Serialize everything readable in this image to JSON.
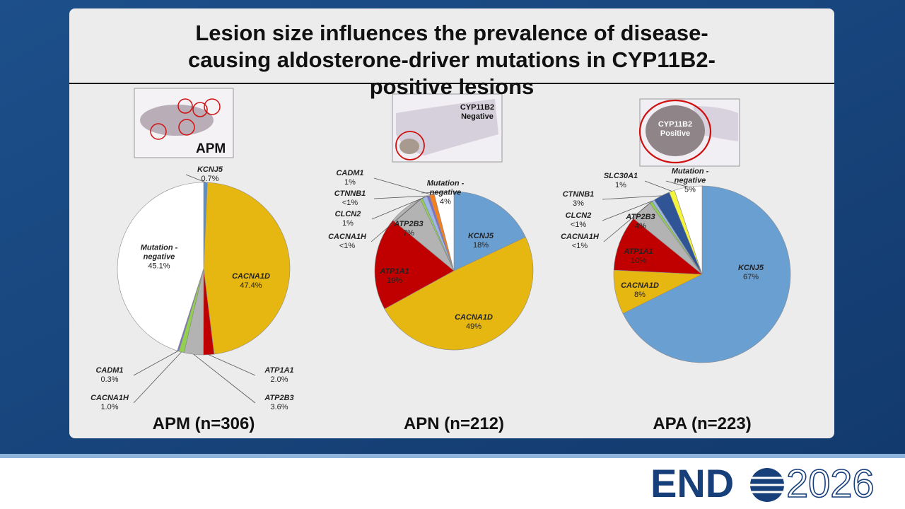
{
  "title": "Lesion size influences the prevalence of disease-causing aldosterone-driver mutations in CYP11B2-positive lesions",
  "images": [
    {
      "label": "APM"
    },
    {
      "label": "CYP11B2 Negative"
    },
    {
      "label": "CYP11B2 Positive"
    }
  ],
  "logo": {
    "left": "END",
    "right": "2026"
  },
  "chart_data": [
    {
      "type": "pie",
      "title": "APM (n=306)",
      "categories": [
        "KCNJ5",
        "CACNA1D",
        "ATP1A1",
        "ATP2B3",
        "CACNA1H",
        "CADM1",
        "Mutation -negative"
      ],
      "values": [
        0.7,
        47.4,
        2,
        3.6,
        1,
        0.3,
        45.1
      ],
      "value_labels": [
        "0.7%",
        "47.4%",
        "2.0%",
        "3.6%",
        "1.0%",
        "0.3%",
        "45.1%"
      ],
      "colors": [
        "#5b8fc7",
        "#e6b711",
        "#c00000",
        "#b3b3b3",
        "#92d050",
        "#7f6fd0",
        "#ffffff"
      ]
    },
    {
      "type": "pie",
      "title": "APN (n=212)",
      "categories": [
        "KCNJ5",
        "CACNA1D",
        "ATP1A1",
        "ATP2B3",
        "CACNA1H",
        "CLCN2",
        "CTNNB1",
        "CADM1",
        "Mutation -negative"
      ],
      "values": [
        18,
        49,
        19,
        7,
        0.5,
        1,
        0.5,
        1,
        4
      ],
      "value_labels": [
        "18%",
        "49%",
        "19%",
        "7%",
        "<1%",
        "1%",
        "<1%",
        "1%",
        "4%"
      ],
      "colors": [
        "#6a9fd2",
        "#e6b711",
        "#c00000",
        "#b3b3b3",
        "#92d050",
        "#9db8e8",
        "#7f6fd0",
        "#f08020",
        "#ffffff"
      ]
    },
    {
      "type": "pie",
      "title": "APA (n=223)",
      "categories": [
        "KCNJ5",
        "CACNA1D",
        "ATP1A1",
        "ATP2B3",
        "CACNA1H",
        "CLCN2",
        "CTNNB1",
        "SLC30A1",
        "Mutation -negative"
      ],
      "values": [
        67,
        8,
        10,
        4,
        0.5,
        0.5,
        3,
        1,
        5
      ],
      "value_labels": [
        "67%",
        "8%",
        "10%",
        "4%",
        "<1%",
        "<1%",
        "3%",
        "1%",
        "5%"
      ],
      "colors": [
        "#6a9fd2",
        "#e6b711",
        "#c00000",
        "#b3b3b3",
        "#92d050",
        "#9db8e8",
        "#2f5597",
        "#f5f53a",
        "#ffffff"
      ]
    }
  ]
}
